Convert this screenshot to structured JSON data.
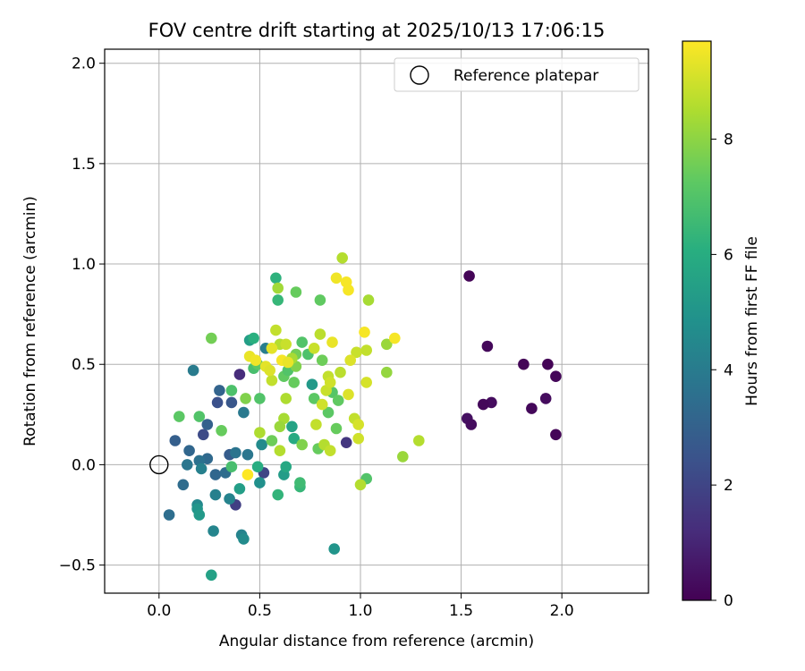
{
  "chart_data": {
    "type": "scatter",
    "title": "FOV centre drift starting at 2025/10/13 17:06:15",
    "xlabel": "Angular distance from reference (arcmin)",
    "ylabel": "Rotation from reference (arcmin)",
    "xlim": [
      -0.27,
      2.43
    ],
    "ylim": [
      -0.64,
      2.07
    ],
    "xticks": [
      0.0,
      0.5,
      1.0,
      1.5,
      2.0
    ],
    "xtick_labels": [
      "0.0",
      "0.5",
      "1.0",
      "1.5",
      "2.0"
    ],
    "yticks": [
      -0.5,
      0.0,
      0.5,
      1.0,
      1.5,
      2.0
    ],
    "ytick_labels": [
      "−0.5",
      "0.0",
      "0.5",
      "1.0",
      "1.5",
      "2.0"
    ],
    "grid": true,
    "legend": {
      "position": "top-right",
      "label": "Reference platepar"
    },
    "reference_point": {
      "x": 0.0,
      "y": 0.0
    },
    "colorbar": {
      "label": "Hours from first FF file",
      "min": 0,
      "max": 9.7,
      "ticks": [
        0,
        2,
        4,
        6,
        8
      ],
      "tick_labels": [
        "0",
        "2",
        "4",
        "6",
        "8"
      ],
      "colormap": "viridis"
    },
    "points": [
      {
        "x": 1.54,
        "y": 0.94,
        "c": 0.1
      },
      {
        "x": 1.63,
        "y": 0.59,
        "c": 0.2
      },
      {
        "x": 1.81,
        "y": 0.5,
        "c": 0.1
      },
      {
        "x": 1.93,
        "y": 0.5,
        "c": 0.05
      },
      {
        "x": 1.97,
        "y": 0.44,
        "c": 0.15
      },
      {
        "x": 1.92,
        "y": 0.33,
        "c": 0.3
      },
      {
        "x": 1.85,
        "y": 0.28,
        "c": 0.2
      },
      {
        "x": 1.97,
        "y": 0.15,
        "c": 0.1
      },
      {
        "x": 1.65,
        "y": 0.31,
        "c": 0.3
      },
      {
        "x": 1.61,
        "y": 0.3,
        "c": 0.2
      },
      {
        "x": 1.53,
        "y": 0.23,
        "c": 0.4
      },
      {
        "x": 1.55,
        "y": 0.2,
        "c": 0.3
      },
      {
        "x": 0.93,
        "y": 0.11,
        "c": 1.5
      },
      {
        "x": 0.4,
        "y": 0.45,
        "c": 1.2
      },
      {
        "x": 0.52,
        "y": -0.04,
        "c": 2.0
      },
      {
        "x": 0.29,
        "y": 0.31,
        "c": 2.4
      },
      {
        "x": 0.36,
        "y": 0.31,
        "c": 2.6
      },
      {
        "x": 0.22,
        "y": 0.15,
        "c": 2.2
      },
      {
        "x": 0.38,
        "y": -0.2,
        "c": 1.8
      },
      {
        "x": 0.35,
        "y": 0.05,
        "c": 2.8
      },
      {
        "x": 0.08,
        "y": 0.12,
        "c": 2.9
      },
      {
        "x": 0.3,
        "y": 0.37,
        "c": 3.1
      },
      {
        "x": 0.24,
        "y": 0.2,
        "c": 3.0
      },
      {
        "x": 0.28,
        "y": -0.05,
        "c": 3.2
      },
      {
        "x": 0.33,
        "y": -0.04,
        "c": 3.4
      },
      {
        "x": 0.24,
        "y": 0.03,
        "c": 3.3
      },
      {
        "x": 0.2,
        "y": 0.02,
        "c": 3.6
      },
      {
        "x": 0.15,
        "y": 0.07,
        "c": 3.2
      },
      {
        "x": 0.05,
        "y": -0.25,
        "c": 3.5
      },
      {
        "x": 0.12,
        "y": -0.1,
        "c": 3.4
      },
      {
        "x": 0.14,
        "y": 0.0,
        "c": 3.8
      },
      {
        "x": 0.21,
        "y": -0.02,
        "c": 4.2
      },
      {
        "x": 0.17,
        "y": 0.47,
        "c": 4.0
      },
      {
        "x": 0.42,
        "y": 0.26,
        "c": 3.9
      },
      {
        "x": 0.38,
        "y": 0.06,
        "c": 3.7
      },
      {
        "x": 0.44,
        "y": 0.05,
        "c": 3.8
      },
      {
        "x": 0.41,
        "y": -0.35,
        "c": 4.3
      },
      {
        "x": 0.42,
        "y": -0.37,
        "c": 4.6
      },
      {
        "x": 0.27,
        "y": -0.33,
        "c": 4.4
      },
      {
        "x": 0.28,
        "y": -0.15,
        "c": 4.2
      },
      {
        "x": 0.35,
        "y": -0.17,
        "c": 4.3
      },
      {
        "x": 0.19,
        "y": -0.2,
        "c": 4.5
      },
      {
        "x": 0.19,
        "y": -0.22,
        "c": 5.0
      },
      {
        "x": 0.2,
        "y": -0.25,
        "c": 5.2
      },
      {
        "x": 0.26,
        "y": -0.55,
        "c": 5.5
      },
      {
        "x": 0.4,
        "y": -0.12,
        "c": 5.4
      },
      {
        "x": 0.5,
        "y": -0.09,
        "c": 4.8
      },
      {
        "x": 0.51,
        "y": 0.1,
        "c": 4.6
      },
      {
        "x": 0.53,
        "y": 0.58,
        "c": 4.1
      },
      {
        "x": 0.87,
        "y": -0.42,
        "c": 5.0
      },
      {
        "x": 0.62,
        "y": -0.05,
        "c": 5.3
      },
      {
        "x": 0.63,
        "y": -0.01,
        "c": 5.8
      },
      {
        "x": 0.66,
        "y": 0.19,
        "c": 5.6
      },
      {
        "x": 0.67,
        "y": 0.13,
        "c": 5.9
      },
      {
        "x": 0.76,
        "y": 0.4,
        "c": 5.2
      },
      {
        "x": 0.45,
        "y": 0.62,
        "c": 5.4
      },
      {
        "x": 0.49,
        "y": -0.01,
        "c": 6.0
      },
      {
        "x": 0.58,
        "y": 0.93,
        "c": 6.2
      },
      {
        "x": 0.59,
        "y": 0.82,
        "c": 6.4
      },
      {
        "x": 0.47,
        "y": 0.63,
        "c": 6.1
      },
      {
        "x": 0.59,
        "y": -0.15,
        "c": 6.3
      },
      {
        "x": 0.7,
        "y": -0.11,
        "c": 6.4
      },
      {
        "x": 0.7,
        "y": -0.09,
        "c": 6.6
      },
      {
        "x": 0.36,
        "y": -0.01,
        "c": 6.8
      },
      {
        "x": 0.31,
        "y": 0.17,
        "c": 7.4
      },
      {
        "x": 0.2,
        "y": 0.24,
        "c": 7.0
      },
      {
        "x": 0.1,
        "y": 0.24,
        "c": 7.2
      },
      {
        "x": 0.26,
        "y": 0.63,
        "c": 7.6
      },
      {
        "x": 0.36,
        "y": 0.37,
        "c": 6.9
      },
      {
        "x": 0.43,
        "y": 0.33,
        "c": 7.8
      },
      {
        "x": 0.47,
        "y": 0.48,
        "c": 6.8
      },
      {
        "x": 0.5,
        "y": 0.33,
        "c": 7.0
      },
      {
        "x": 0.49,
        "y": 0.5,
        "c": 7.2
      },
      {
        "x": 0.56,
        "y": 0.12,
        "c": 7.5
      },
      {
        "x": 0.6,
        "y": 0.07,
        "c": 8.6
      },
      {
        "x": 0.62,
        "y": 0.44,
        "c": 7.3
      },
      {
        "x": 0.64,
        "y": 0.47,
        "c": 7.0
      },
      {
        "x": 0.67,
        "y": 0.41,
        "c": 7.4
      },
      {
        "x": 0.68,
        "y": 0.55,
        "c": 7.6
      },
      {
        "x": 0.68,
        "y": 0.49,
        "c": 7.8
      },
      {
        "x": 0.68,
        "y": 0.86,
        "c": 7.4
      },
      {
        "x": 0.71,
        "y": 0.61,
        "c": 7.0
      },
      {
        "x": 0.71,
        "y": 0.1,
        "c": 7.8
      },
      {
        "x": 0.74,
        "y": 0.55,
        "c": 6.9
      },
      {
        "x": 0.77,
        "y": 0.33,
        "c": 7.2
      },
      {
        "x": 0.79,
        "y": 0.08,
        "c": 7.4
      },
      {
        "x": 0.8,
        "y": 0.82,
        "c": 7.3
      },
      {
        "x": 0.81,
        "y": 0.52,
        "c": 7.5
      },
      {
        "x": 0.84,
        "y": 0.26,
        "c": 7.2
      },
      {
        "x": 0.86,
        "y": 0.36,
        "c": 7.1
      },
      {
        "x": 0.88,
        "y": 0.18,
        "c": 7.4
      },
      {
        "x": 0.89,
        "y": 0.32,
        "c": 7.3
      },
      {
        "x": 1.03,
        "y": -0.07,
        "c": 7.0
      },
      {
        "x": 1.0,
        "y": -0.1,
        "c": 8.6
      },
      {
        "x": 1.21,
        "y": 0.04,
        "c": 8.2
      },
      {
        "x": 1.29,
        "y": 0.12,
        "c": 8.6
      },
      {
        "x": 1.13,
        "y": 0.46,
        "c": 8.1
      },
      {
        "x": 1.13,
        "y": 0.6,
        "c": 8.2
      },
      {
        "x": 1.04,
        "y": 0.82,
        "c": 8.4
      },
      {
        "x": 0.91,
        "y": 1.03,
        "c": 8.6
      },
      {
        "x": 0.59,
        "y": 0.88,
        "c": 8.3
      },
      {
        "x": 0.5,
        "y": 0.16,
        "c": 8.5
      },
      {
        "x": 0.62,
        "y": 0.23,
        "c": 8.4
      },
      {
        "x": 0.6,
        "y": 0.19,
        "c": 8.2
      },
      {
        "x": 0.63,
        "y": 0.33,
        "c": 8.5
      },
      {
        "x": 0.56,
        "y": 0.42,
        "c": 8.8
      },
      {
        "x": 0.6,
        "y": 0.6,
        "c": 8.6
      },
      {
        "x": 0.63,
        "y": 0.6,
        "c": 8.9
      },
      {
        "x": 0.66,
        "y": 0.53,
        "c": 8.4
      },
      {
        "x": 0.58,
        "y": 0.67,
        "c": 8.8
      },
      {
        "x": 0.77,
        "y": 0.58,
        "c": 8.9
      },
      {
        "x": 0.8,
        "y": 0.65,
        "c": 8.7
      },
      {
        "x": 0.82,
        "y": 0.1,
        "c": 8.6
      },
      {
        "x": 0.85,
        "y": 0.07,
        "c": 8.8
      },
      {
        "x": 0.84,
        "y": 0.44,
        "c": 8.8
      },
      {
        "x": 0.83,
        "y": 0.37,
        "c": 8.9
      },
      {
        "x": 0.78,
        "y": 0.2,
        "c": 8.8
      },
      {
        "x": 0.81,
        "y": 0.3,
        "c": 9.0
      },
      {
        "x": 0.85,
        "y": 0.41,
        "c": 9.0
      },
      {
        "x": 0.9,
        "y": 0.46,
        "c": 8.7
      },
      {
        "x": 0.97,
        "y": 0.23,
        "c": 8.8
      },
      {
        "x": 0.99,
        "y": 0.2,
        "c": 9.1
      },
      {
        "x": 0.99,
        "y": 0.13,
        "c": 9.0
      },
      {
        "x": 0.98,
        "y": 0.56,
        "c": 8.9
      },
      {
        "x": 1.03,
        "y": 0.57,
        "c": 8.8
      },
      {
        "x": 1.03,
        "y": 0.41,
        "c": 9.1
      },
      {
        "x": 0.94,
        "y": 0.35,
        "c": 9.2
      },
      {
        "x": 0.95,
        "y": 0.52,
        "c": 9.2
      },
      {
        "x": 0.86,
        "y": 0.61,
        "c": 9.4
      },
      {
        "x": 0.88,
        "y": 0.93,
        "c": 9.5
      },
      {
        "x": 0.93,
        "y": 0.91,
        "c": 9.6
      },
      {
        "x": 0.94,
        "y": 0.87,
        "c": 9.6
      },
      {
        "x": 1.02,
        "y": 0.66,
        "c": 9.6
      },
      {
        "x": 1.17,
        "y": 0.63,
        "c": 9.6
      },
      {
        "x": 0.56,
        "y": 0.58,
        "c": 9.3
      },
      {
        "x": 0.45,
        "y": 0.54,
        "c": 9.4
      },
      {
        "x": 0.48,
        "y": 0.52,
        "c": 9.5
      },
      {
        "x": 0.53,
        "y": 0.49,
        "c": 9.3
      },
      {
        "x": 0.55,
        "y": 0.47,
        "c": 9.2
      },
      {
        "x": 0.61,
        "y": 0.52,
        "c": 9.6
      },
      {
        "x": 0.64,
        "y": 0.51,
        "c": 9.4
      },
      {
        "x": 0.44,
        "y": -0.05,
        "c": 9.7
      }
    ]
  }
}
